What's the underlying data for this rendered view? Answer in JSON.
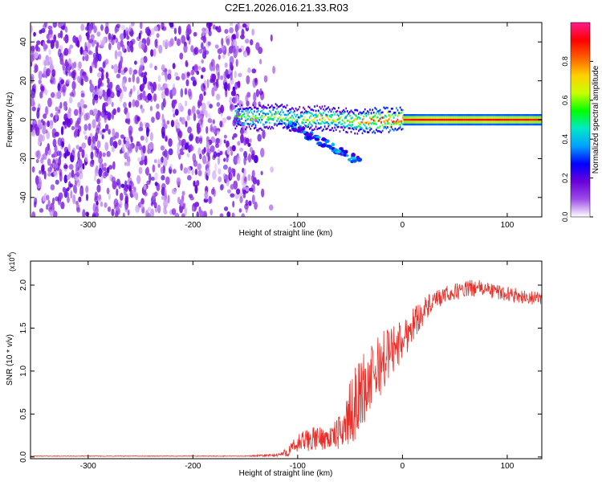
{
  "figure_title": "C2E1.2026.016.21.33.R03",
  "chart_data": [
    {
      "type": "heatmap",
      "title": "C2E1.2026.016.21.33.R03",
      "xlabel": "Height of straight line (km)",
      "ylabel": "Frequency (Hz)",
      "xlim": [
        -355,
        133
      ],
      "ylim": [
        -50,
        50
      ],
      "xticks": [
        -300,
        -200,
        -100,
        0,
        100
      ],
      "xtick_labels": [
        "-300",
        "-200",
        "-100",
        "0",
        "100"
      ],
      "yticks": [
        -40,
        -20,
        0,
        20,
        40
      ],
      "ytick_labels": [
        "-40",
        "-20",
        "0",
        "20",
        "40"
      ],
      "colorbar": {
        "label": "Normalized spectral amplitude",
        "range": [
          0.0,
          1.0
        ],
        "ticks": [
          0.0,
          0.2,
          0.4,
          0.6,
          0.8
        ],
        "tick_labels": [
          "0.0",
          "0.2",
          "0.4",
          "0.6",
          "0.8"
        ],
        "colormap": [
          "#ffffff",
          "#9d4de8",
          "#6a00d8",
          "#0000ff",
          "#00a0ff",
          "#00e8c8",
          "#00ff00",
          "#c8ff00",
          "#ffd000",
          "#ff6000",
          "#ff0000",
          "#ff1a8c"
        ]
      },
      "regions": [
        {
          "name": "noise",
          "x_from": -355,
          "x_to": -140,
          "y_from": -50,
          "y_to": 50,
          "amplitude": 0.15
        },
        {
          "name": "signal-trace",
          "x_from": -160,
          "x_to": 133,
          "frequency": 0,
          "amplitude_range": [
            0.3,
            1.0
          ]
        },
        {
          "name": "descending-branch",
          "x_from": -110,
          "x_to": -40,
          "frequency_from": -2,
          "frequency_to": -22,
          "amplitude": 0.3
        }
      ],
      "signal_trace": {
        "x": [
          -160,
          -140,
          -120,
          -100,
          -80,
          -60,
          -40,
          -20,
          0,
          20,
          40,
          60,
          80,
          100,
          120,
          133
        ],
        "freq": [
          2,
          1,
          2,
          0,
          1,
          0,
          -1,
          0,
          0,
          0,
          0,
          0,
          0,
          0,
          0,
          0
        ],
        "amp": [
          0.55,
          0.6,
          0.6,
          0.55,
          0.65,
          0.6,
          0.7,
          0.8,
          0.88,
          0.92,
          0.92,
          0.9,
          0.92,
          0.9,
          0.9,
          0.88
        ]
      },
      "colors": {
        "line": "#ff0000"
      }
    },
    {
      "type": "line",
      "title": "",
      "xlabel": "Height of straight line (km)",
      "ylabel": "SNR (10 * v/v)",
      "scale_label": "(x10",
      "scale_exponent": "4",
      "scale_close": ")",
      "xlim": [
        -355,
        133
      ],
      "ylim": [
        -0.02,
        2.28
      ],
      "xticks": [
        -300,
        -200,
        -100,
        0,
        100
      ],
      "xtick_labels": [
        "-300",
        "-200",
        "-100",
        "0",
        "100"
      ],
      "yticks": [
        0.0,
        0.5,
        1.0,
        1.5,
        2.0
      ],
      "ytick_labels": [
        "0.0",
        "0.5",
        "1.0",
        "1.5",
        "2.0"
      ],
      "series": [
        {
          "name": "SNR",
          "color": "#e8302a",
          "x": [
            -355,
            -300,
            -250,
            -200,
            -150,
            -120,
            -110,
            -100,
            -90,
            -80,
            -70,
            -60,
            -50,
            -40,
            -30,
            -20,
            -10,
            0,
            10,
            20,
            30,
            40,
            50,
            60,
            70,
            80,
            90,
            100,
            110,
            120,
            133
          ],
          "y": [
            0.01,
            0.01,
            0.01,
            0.01,
            0.01,
            0.02,
            0.05,
            0.15,
            0.2,
            0.22,
            0.22,
            0.28,
            0.5,
            0.75,
            0.9,
            1.1,
            1.25,
            1.35,
            1.55,
            1.7,
            1.8,
            1.88,
            1.92,
            1.95,
            1.97,
            1.95,
            1.92,
            1.9,
            1.88,
            1.85,
            1.85
          ],
          "noise": [
            0.004,
            0.004,
            0.004,
            0.004,
            0.005,
            0.02,
            0.06,
            0.12,
            0.14,
            0.14,
            0.13,
            0.2,
            0.38,
            0.45,
            0.4,
            0.38,
            0.3,
            0.25,
            0.2,
            0.16,
            0.12,
            0.1,
            0.1,
            0.1,
            0.1,
            0.09,
            0.09,
            0.09,
            0.08,
            0.08,
            0.08
          ]
        }
      ]
    }
  ]
}
